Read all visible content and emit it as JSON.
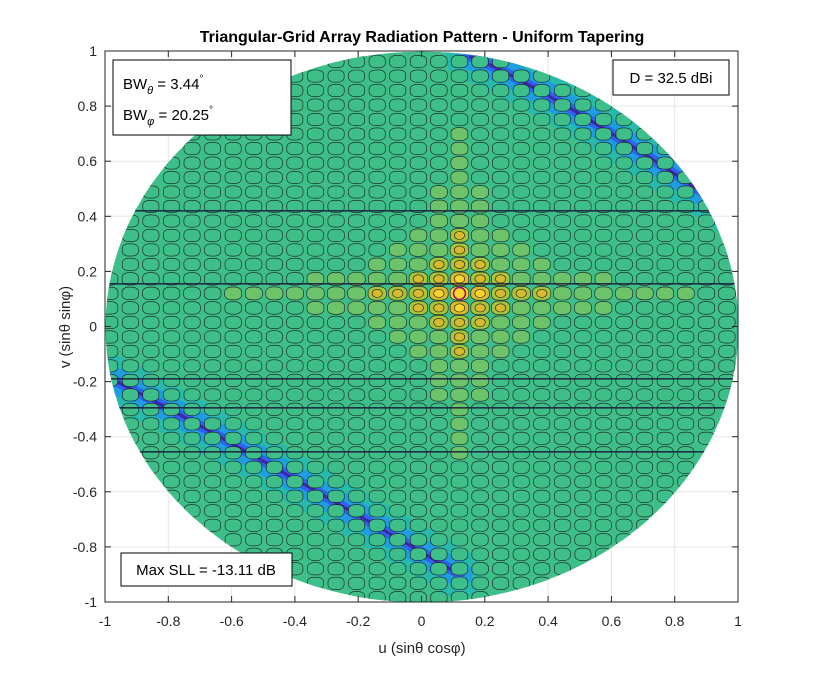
{
  "chart_data": {
    "type": "heatmap",
    "subtype": "filled-contour",
    "title": "Triangular-Grid Array Radiation Pattern - Uniform Tapering",
    "xlabel": "u (sinθ cosφ)",
    "ylabel": "v (sinθ sinφ)",
    "xlim": [
      -1,
      1
    ],
    "ylim": [
      -1,
      1
    ],
    "xticks": [
      "-1",
      "-0.8",
      "-0.6",
      "-0.4",
      "-0.2",
      "0",
      "0.2",
      "0.4",
      "0.6",
      "0.8",
      "1"
    ],
    "yticks": [
      "1",
      "0.8",
      "0.6",
      "0.4",
      "0.2",
      "0",
      "-0.2",
      "-0.4",
      "-0.6",
      "-0.8",
      "-1"
    ],
    "grid": true,
    "visible_region": "unit circle u^2 + v^2 <= 1",
    "main_beam": {
      "u": 0.12,
      "v": 0.12
    },
    "lobe_spacing": {
      "u": 0.065,
      "v": 0.0526
    },
    "colormap": [
      "#3e26a8",
      "#2e62f2",
      "#1e9ee0",
      "#23b8b0",
      "#3ebf8a",
      "#6cc36a",
      "#a6c43c",
      "#d8ba2e",
      "#f9d52b"
    ],
    "annotations": {
      "bw_theta_label": "BW",
      "bw_theta_sub": "θ",
      "bw_theta_value": " = 3.44",
      "bw_theta_unit": "°",
      "bw_phi_label": "BW",
      "bw_phi_sub": "φ",
      "bw_phi_value": " = 20.25",
      "bw_phi_unit": "°",
      "directivity": "D = 32.5 dBi",
      "max_sll": "Max SLL = -13.11 dB"
    }
  }
}
